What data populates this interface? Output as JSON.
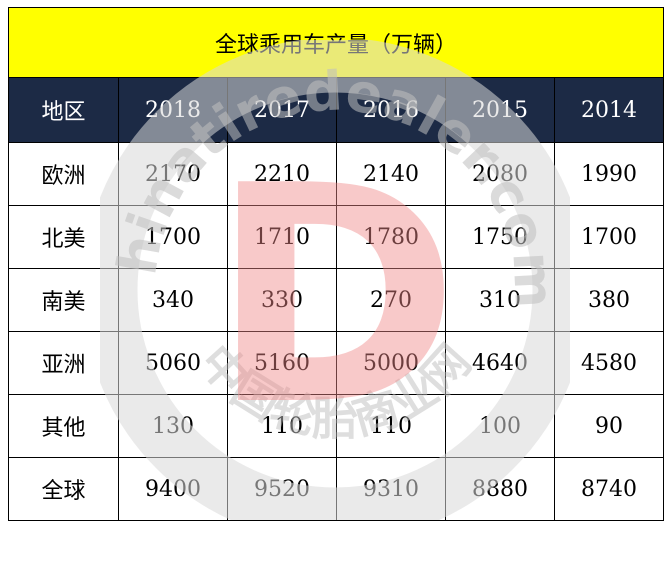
{
  "title": "全球乘用车产量（万辆）",
  "header": {
    "region": "地区",
    "years": [
      "2018",
      "2017",
      "2016",
      "2015",
      "2014"
    ]
  },
  "rows": [
    {
      "region": "欧洲",
      "values": [
        "2170",
        "2210",
        "2140",
        "2080",
        "1990"
      ]
    },
    {
      "region": "北美",
      "values": [
        "1700",
        "1710",
        "1780",
        "1750",
        "1700"
      ]
    },
    {
      "region": "南美",
      "values": [
        "340",
        "330",
        "270",
        "310",
        "380"
      ]
    },
    {
      "region": "亚洲",
      "values": [
        "5060",
        "5160",
        "5000",
        "4640",
        "4580"
      ]
    },
    {
      "region": "其他",
      "values": [
        "130",
        "110",
        "110",
        "100",
        "90"
      ]
    },
    {
      "region": "全球",
      "values": [
        "9400",
        "9520",
        "9310",
        "8880",
        "8740"
      ]
    }
  ],
  "watermark": {
    "brand": "chinatiredealer",
    "domain": ".com",
    "cn_text": "中国轮胎商业网",
    "letter": "D",
    "circle_color": "#d9d9d9",
    "letter_color": "#f08a8a"
  },
  "colors": {
    "title_bg": "#ffff00",
    "header_bg": "#1c2a45",
    "header_text": "#ffffff"
  }
}
